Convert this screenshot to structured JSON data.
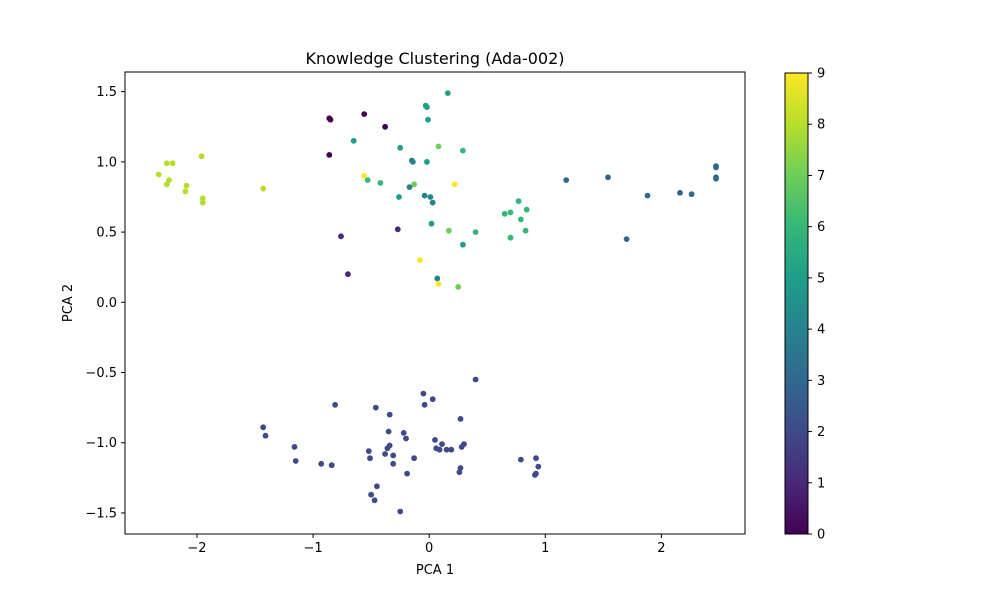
{
  "chart_data": {
    "type": "scatter",
    "title": "Knowledge Clustering (Ada-002)",
    "xlabel": "PCA 1",
    "ylabel": "PCA 2",
    "xlim": [
      -2.62,
      2.72
    ],
    "ylim": [
      -1.65,
      1.64
    ],
    "x_ticks": [
      -2,
      -1,
      0,
      1,
      2
    ],
    "x_tick_labels": [
      "−2",
      "−1",
      "0",
      "1",
      "2"
    ],
    "y_ticks": [
      -1.5,
      -1.0,
      -0.5,
      0.0,
      0.5,
      1.0,
      1.5
    ],
    "y_tick_labels": [
      "−1.5",
      "−1.0",
      "−0.5",
      "0.0",
      "0.5",
      "1.0",
      "1.5"
    ],
    "grid": false,
    "colormap": "viridis",
    "colorbar": {
      "range": [
        0,
        9
      ],
      "ticks": [
        0,
        1,
        2,
        3,
        4,
        5,
        6,
        7,
        8,
        9
      ],
      "tick_labels": [
        "0",
        "1",
        "2",
        "3",
        "4",
        "5",
        "6",
        "7",
        "8",
        "9"
      ]
    },
    "points": [
      {
        "x": -0.86,
        "y": 1.31,
        "c": 0
      },
      {
        "x": -0.85,
        "y": 1.3,
        "c": 0
      },
      {
        "x": -0.56,
        "y": 1.34,
        "c": 0
      },
      {
        "x": -0.38,
        "y": 1.25,
        "c": 0
      },
      {
        "x": -0.86,
        "y": 1.05,
        "c": 0
      },
      {
        "x": -0.76,
        "y": 0.47,
        "c": 1
      },
      {
        "x": -0.7,
        "y": 0.2,
        "c": 1
      },
      {
        "x": -0.27,
        "y": 0.52,
        "c": 1
      },
      {
        "x": -1.43,
        "y": -0.89,
        "c": 2
      },
      {
        "x": -1.41,
        "y": -0.95,
        "c": 2
      },
      {
        "x": -1.16,
        "y": -1.03,
        "c": 2
      },
      {
        "x": -1.15,
        "y": -1.13,
        "c": 2
      },
      {
        "x": -0.93,
        "y": -1.15,
        "c": 2
      },
      {
        "x": -0.84,
        "y": -1.16,
        "c": 2
      },
      {
        "x": -0.81,
        "y": -0.73,
        "c": 2
      },
      {
        "x": -0.52,
        "y": -1.06,
        "c": 2
      },
      {
        "x": -0.51,
        "y": -1.11,
        "c": 2
      },
      {
        "x": -0.46,
        "y": -0.75,
        "c": 2
      },
      {
        "x": -0.38,
        "y": -1.08,
        "c": 2
      },
      {
        "x": -0.36,
        "y": -1.04,
        "c": 2
      },
      {
        "x": -0.34,
        "y": -0.8,
        "c": 2
      },
      {
        "x": -0.35,
        "y": -0.92,
        "c": 2
      },
      {
        "x": -0.34,
        "y": -1.02,
        "c": 2
      },
      {
        "x": -0.31,
        "y": -1.09,
        "c": 2
      },
      {
        "x": -0.31,
        "y": -1.15,
        "c": 2
      },
      {
        "x": -0.5,
        "y": -1.37,
        "c": 2
      },
      {
        "x": -0.47,
        "y": -1.41,
        "c": 2
      },
      {
        "x": -0.45,
        "y": -1.31,
        "c": 2
      },
      {
        "x": -0.25,
        "y": -1.49,
        "c": 2
      },
      {
        "x": -0.22,
        "y": -0.93,
        "c": 2
      },
      {
        "x": -0.2,
        "y": -0.97,
        "c": 2
      },
      {
        "x": -0.19,
        "y": -1.22,
        "c": 2
      },
      {
        "x": -0.13,
        "y": -1.11,
        "c": 2
      },
      {
        "x": -0.05,
        "y": -0.65,
        "c": 2
      },
      {
        "x": -0.04,
        "y": -0.73,
        "c": 2
      },
      {
        "x": 0.03,
        "y": -0.69,
        "c": 2
      },
      {
        "x": 0.05,
        "y": -0.98,
        "c": 2
      },
      {
        "x": 0.06,
        "y": -1.04,
        "c": 2
      },
      {
        "x": 0.09,
        "y": -1.05,
        "c": 2
      },
      {
        "x": 0.11,
        "y": -1.01,
        "c": 2
      },
      {
        "x": 0.15,
        "y": -1.05,
        "c": 2
      },
      {
        "x": 0.19,
        "y": -1.05,
        "c": 2
      },
      {
        "x": 0.26,
        "y": -1.21,
        "c": 2
      },
      {
        "x": 0.27,
        "y": -1.18,
        "c": 2
      },
      {
        "x": 0.28,
        "y": -1.03,
        "c": 2
      },
      {
        "x": 0.3,
        "y": -1.01,
        "c": 2
      },
      {
        "x": 0.27,
        "y": -0.83,
        "c": 2
      },
      {
        "x": 0.4,
        "y": -0.55,
        "c": 2
      },
      {
        "x": 0.79,
        "y": -1.12,
        "c": 2
      },
      {
        "x": 0.92,
        "y": -1.11,
        "c": 2
      },
      {
        "x": 0.94,
        "y": -1.17,
        "c": 2
      },
      {
        "x": 0.91,
        "y": -1.23,
        "c": 2
      },
      {
        "x": 0.92,
        "y": -1.22,
        "c": 2
      },
      {
        "x": 1.18,
        "y": 0.87,
        "c": 3
      },
      {
        "x": 1.54,
        "y": 0.89,
        "c": 3
      },
      {
        "x": 1.7,
        "y": 0.45,
        "c": 3
      },
      {
        "x": 1.88,
        "y": 0.76,
        "c": 3
      },
      {
        "x": 2.16,
        "y": 0.78,
        "c": 3
      },
      {
        "x": 2.26,
        "y": 0.77,
        "c": 3
      },
      {
        "x": 2.47,
        "y": 0.97,
        "c": 3
      },
      {
        "x": 2.47,
        "y": 0.96,
        "c": 3
      },
      {
        "x": 2.47,
        "y": 0.88,
        "c": 3
      },
      {
        "x": 2.47,
        "y": 0.89,
        "c": 3
      },
      {
        "x": -0.15,
        "y": 1.01,
        "c": 4
      },
      {
        "x": -0.14,
        "y": 1.0,
        "c": 4
      },
      {
        "x": -0.04,
        "y": 0.76,
        "c": 4
      },
      {
        "x": 0.01,
        "y": 0.75,
        "c": 4
      },
      {
        "x": 0.03,
        "y": 0.71,
        "c": 4
      },
      {
        "x": 0.07,
        "y": 0.17,
        "c": 4
      },
      {
        "x": -0.17,
        "y": 0.82,
        "c": 4
      },
      {
        "x": -0.03,
        "y": 1.4,
        "c": 5
      },
      {
        "x": -0.02,
        "y": 1.39,
        "c": 5
      },
      {
        "x": -0.01,
        "y": 1.3,
        "c": 5
      },
      {
        "x": 0.16,
        "y": 1.49,
        "c": 5
      },
      {
        "x": -0.65,
        "y": 1.15,
        "c": 5
      },
      {
        "x": -0.25,
        "y": 1.1,
        "c": 5
      },
      {
        "x": -0.02,
        "y": 1.0,
        "c": 5
      },
      {
        "x": -0.26,
        "y": 0.75,
        "c": 5
      },
      {
        "x": 0.02,
        "y": 0.56,
        "c": 5
      },
      {
        "x": 0.29,
        "y": 0.41,
        "c": 5
      },
      {
        "x": -0.53,
        "y": 0.87,
        "c": 6
      },
      {
        "x": -0.42,
        "y": 0.85,
        "c": 6
      },
      {
        "x": 0.29,
        "y": 1.08,
        "c": 6
      },
      {
        "x": 0.4,
        "y": 0.5,
        "c": 6
      },
      {
        "x": 0.65,
        "y": 0.63,
        "c": 6
      },
      {
        "x": 0.7,
        "y": 0.64,
        "c": 6
      },
      {
        "x": 0.7,
        "y": 0.46,
        "c": 6
      },
      {
        "x": 0.77,
        "y": 0.72,
        "c": 6
      },
      {
        "x": 0.79,
        "y": 0.59,
        "c": 6
      },
      {
        "x": 0.84,
        "y": 0.66,
        "c": 6
      },
      {
        "x": 0.83,
        "y": 0.51,
        "c": 6
      },
      {
        "x": -0.13,
        "y": 0.84,
        "c": 7
      },
      {
        "x": 0.08,
        "y": 1.11,
        "c": 7
      },
      {
        "x": 0.17,
        "y": 0.51,
        "c": 7
      },
      {
        "x": 0.25,
        "y": 0.11,
        "c": 7
      },
      {
        "x": -2.33,
        "y": 0.91,
        "c": 8
      },
      {
        "x": -2.26,
        "y": 0.99,
        "c": 8
      },
      {
        "x": -2.21,
        "y": 0.99,
        "c": 8
      },
      {
        "x": -2.26,
        "y": 0.84,
        "c": 8
      },
      {
        "x": -2.24,
        "y": 0.87,
        "c": 8
      },
      {
        "x": -2.1,
        "y": 0.79,
        "c": 8
      },
      {
        "x": -2.09,
        "y": 0.83,
        "c": 8
      },
      {
        "x": -1.96,
        "y": 1.04,
        "c": 8
      },
      {
        "x": -1.95,
        "y": 0.74,
        "c": 8
      },
      {
        "x": -1.95,
        "y": 0.71,
        "c": 8
      },
      {
        "x": -1.43,
        "y": 0.81,
        "c": 8
      },
      {
        "x": -0.56,
        "y": 0.9,
        "c": 9
      },
      {
        "x": -0.08,
        "y": 0.3,
        "c": 9
      },
      {
        "x": 0.08,
        "y": 0.13,
        "c": 9
      },
      {
        "x": 0.22,
        "y": 0.84,
        "c": 9
      }
    ]
  }
}
